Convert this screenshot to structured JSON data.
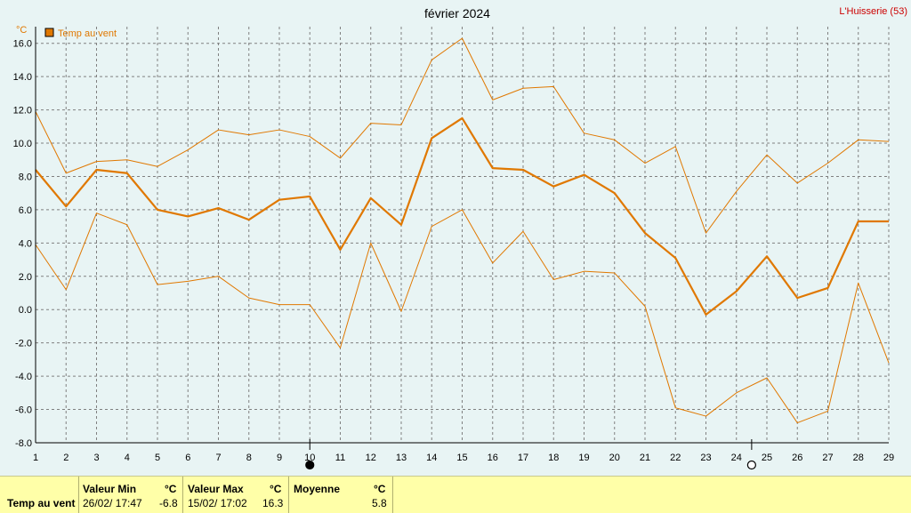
{
  "chart_data": {
    "type": "line",
    "title": "février 2024",
    "location": "L'Huisserie (53)",
    "ylabel": "°C",
    "xlim": [
      1,
      29
    ],
    "ylim": [
      -8,
      17
    ],
    "y_ticks": [
      -8,
      -6,
      -4,
      -2,
      0,
      2,
      4,
      6,
      8,
      10,
      12,
      14,
      16
    ],
    "y_tick_labels": [
      "-8.0",
      "-6.0",
      "-4.0",
      "-2.0",
      "0.0",
      "2.0",
      "4.0",
      "6.0",
      "8.0",
      "10.0",
      "12.0",
      "14.0",
      "16.0"
    ],
    "x": [
      1,
      2,
      3,
      4,
      5,
      6,
      7,
      8,
      9,
      10,
      11,
      12,
      13,
      14,
      15,
      16,
      17,
      18,
      19,
      20,
      21,
      22,
      23,
      24,
      25,
      26,
      27,
      28,
      29
    ],
    "grid": true,
    "legend_position": "top-left",
    "legend": "Temp au vent",
    "series_color": "#e07800",
    "series": [
      {
        "name": "Temp au vent",
        "role": "mean",
        "values": [
          8.4,
          6.2,
          8.4,
          8.2,
          6.0,
          5.6,
          6.1,
          5.4,
          6.6,
          6.8,
          3.6,
          6.7,
          5.1,
          10.3,
          11.5,
          8.5,
          8.4,
          7.4,
          8.1,
          7.0,
          4.6,
          3.1,
          -0.3,
          1.1,
          3.2,
          0.7,
          1.3,
          5.3,
          5.3
        ]
      },
      {
        "role": "max",
        "values": [
          11.9,
          8.2,
          8.9,
          9.0,
          8.6,
          9.6,
          10.8,
          10.5,
          10.8,
          10.4,
          9.1,
          11.2,
          11.1,
          15.0,
          16.3,
          12.6,
          13.3,
          13.4,
          10.6,
          10.2,
          8.8,
          9.8,
          4.6,
          7.1,
          9.3,
          7.6,
          8.8,
          10.2,
          10.1
        ]
      },
      {
        "role": "min",
        "values": [
          3.9,
          1.2,
          5.8,
          5.1,
          1.5,
          1.7,
          2.0,
          0.7,
          0.3,
          0.3,
          -2.3,
          4.0,
          -0.1,
          5.0,
          6.0,
          2.8,
          4.7,
          1.8,
          2.3,
          2.2,
          0.2,
          -5.9,
          -6.4,
          -5.0,
          -4.1,
          -6.8,
          -6.1,
          1.6,
          -3.2
        ]
      }
    ],
    "moon_markers": [
      {
        "x": 10,
        "phase": "new-moon"
      },
      {
        "x": 24.5,
        "phase": "full-moon"
      }
    ]
  },
  "stats": {
    "row_label": "Temp au vent",
    "min": {
      "header": "Valeur Min",
      "unit": "°C",
      "date": "26/02/ 17:47",
      "value": "-6.8"
    },
    "max": {
      "header": "Valeur Max",
      "unit": "°C",
      "date": "15/02/ 17:02",
      "value": "16.3"
    },
    "avg": {
      "header": "Moyenne",
      "unit": "°C",
      "value": "5.8"
    }
  }
}
